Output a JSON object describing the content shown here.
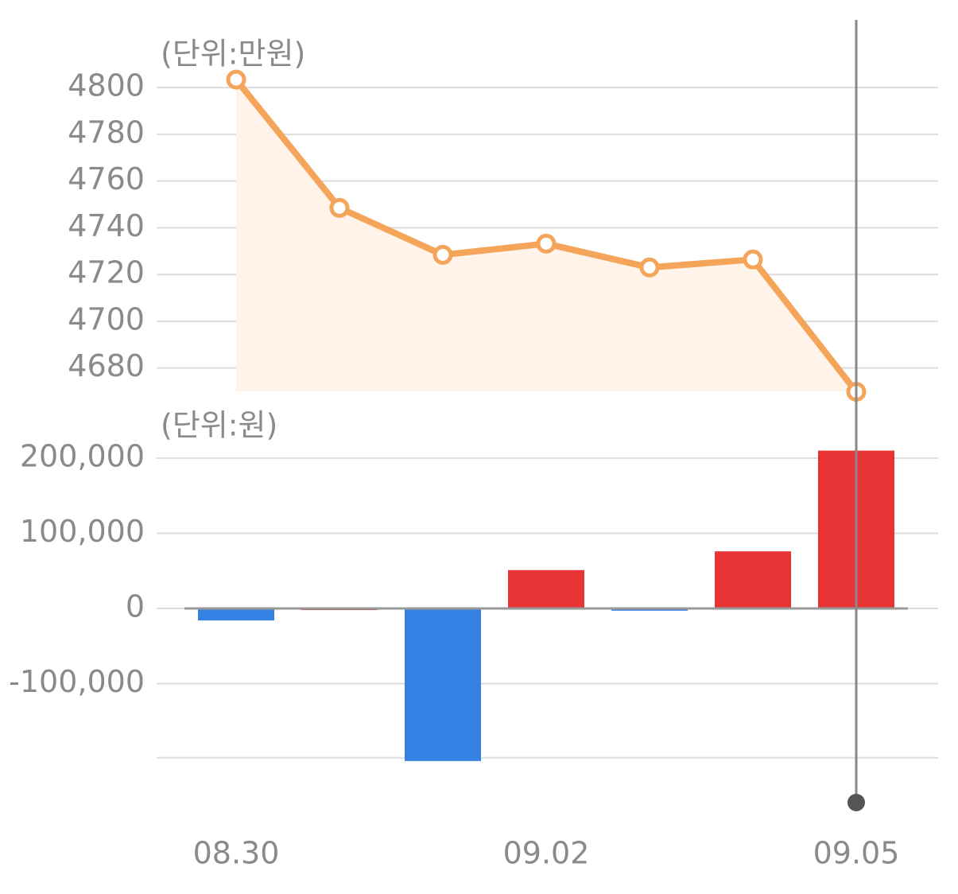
{
  "chart_data": [
    {
      "type": "line",
      "unit_label": "(단위:만원)",
      "color": "#f5a55a",
      "area_color": "#fff3ea",
      "values": [
        4803.4,
        4748.5,
        4728.4,
        4733.2,
        4723,
        4726.4,
        4669.8
      ],
      "ylim": [
        4670,
        4810
      ],
      "yticks": [
        4680,
        4700,
        4720,
        4740,
        4760,
        4780,
        4800
      ],
      "grid": true
    },
    {
      "type": "bar",
      "unit_label": "(단위:원)",
      "categories": [
        "08.30",
        null,
        null,
        "09.02",
        null,
        null,
        "09.05"
      ],
      "values": [
        -16000,
        0,
        -203000,
        51000,
        -3000,
        76000,
        210000
      ],
      "positive_color": "#e83434",
      "negative_color": "#3580e3",
      "ylim": [
        -205000,
        215000
      ],
      "yticks": [
        {
          "value": 200000,
          "label": "200,000"
        },
        {
          "value": 100000,
          "label": "100,000"
        },
        0,
        {
          "value": -100000,
          "label": "-100,000"
        }
      ],
      "grid": true
    }
  ]
}
